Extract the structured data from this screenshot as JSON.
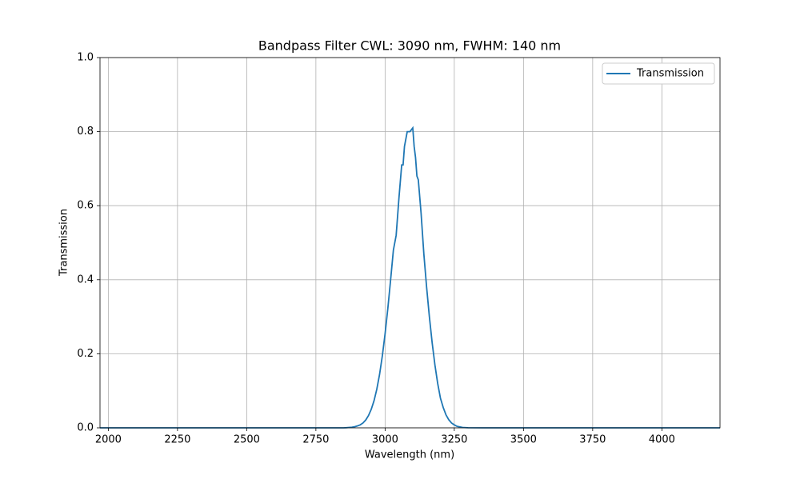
{
  "chart_data": {
    "type": "line",
    "title": "Bandpass Filter CWL: 3090 nm, FWHM: 140 nm",
    "x_label": "Wavelength (nm)",
    "y_label": "Transmission",
    "x": [
      1970,
      2800,
      2850,
      2860,
      2870,
      2880,
      2890,
      2900,
      2910,
      2920,
      2930,
      2940,
      2950,
      2960,
      2970,
      2980,
      2990,
      3000,
      3010,
      3020,
      3030,
      3040,
      3050,
      3060,
      3065,
      3070,
      3080,
      3090,
      3100,
      3105,
      3110,
      3115,
      3120,
      3130,
      3140,
      3150,
      3160,
      3170,
      3180,
      3190,
      3200,
      3210,
      3220,
      3230,
      3240,
      3250,
      3260,
      3280,
      3300,
      3350,
      4210
    ],
    "series": [
      {
        "name": "Transmission",
        "color": "#1f77b4",
        "values": [
          0,
          0,
          0,
          0.0004,
          0.001,
          0.0015,
          0.003,
          0.005,
          0.008,
          0.013,
          0.021,
          0.033,
          0.05,
          0.073,
          0.104,
          0.144,
          0.194,
          0.254,
          0.323,
          0.4,
          0.48,
          0.52,
          0.62,
          0.71,
          0.71,
          0.76,
          0.8,
          0.8,
          0.81,
          0.76,
          0.73,
          0.68,
          0.67,
          0.58,
          0.47,
          0.38,
          0.3,
          0.23,
          0.17,
          0.12,
          0.08,
          0.055,
          0.035,
          0.022,
          0.013,
          0.008,
          0.004,
          0.001,
          0.0003,
          0,
          0
        ]
      }
    ],
    "xlim": [
      1970,
      4210
    ],
    "ylim": [
      0,
      1
    ],
    "xticks": [
      2000,
      2250,
      2500,
      2750,
      3000,
      3250,
      3500,
      3750,
      4000
    ],
    "yticks": [
      {
        "value": 0,
        "label": "0.0"
      },
      0.2,
      0.4,
      0.6,
      0.8,
      {
        "value": 1,
        "label": "1.0"
      }
    ],
    "grid": true,
    "legend": "upper right"
  }
}
